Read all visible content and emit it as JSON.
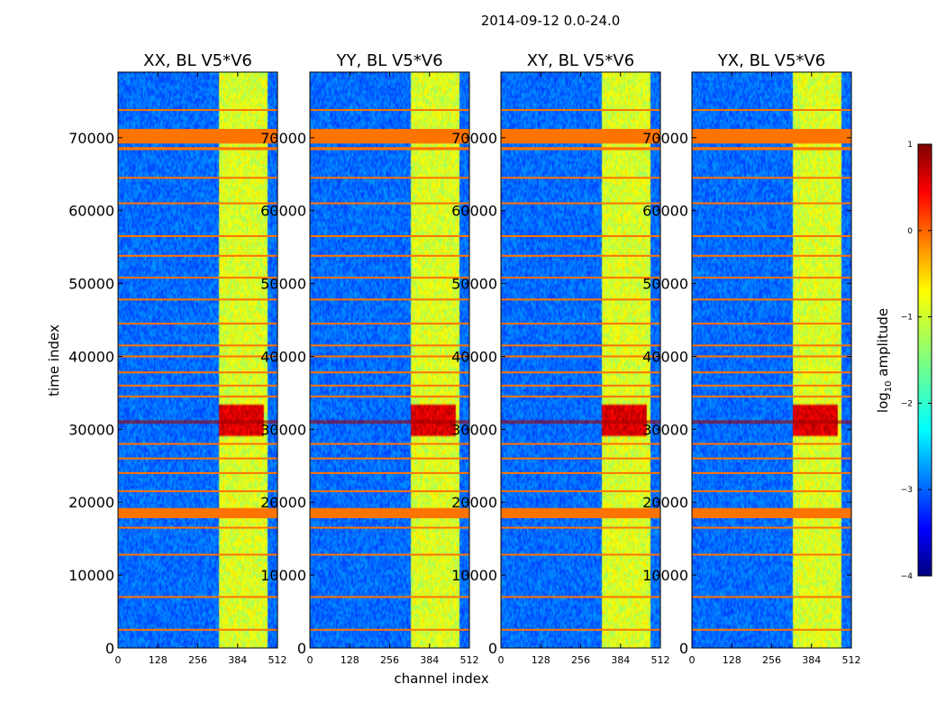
{
  "chart_data": {
    "type": "heatmap",
    "suptitle": "2014-09-12 0.0-24.0",
    "xlabel": "channel index",
    "ylabel": "time index",
    "xlim": [
      0,
      512
    ],
    "ylim": [
      0,
      79000
    ],
    "xticks": [
      "0",
      "128",
      "256",
      "384",
      "512"
    ],
    "xtick_values": [
      0,
      128,
      256,
      384,
      512
    ],
    "yticks": [
      "0",
      "10000",
      "20000",
      "30000",
      "40000",
      "50000",
      "60000",
      "70000"
    ],
    "ytick_values": [
      0,
      10000,
      20000,
      30000,
      40000,
      50000,
      60000,
      70000
    ],
    "panels": [
      {
        "title": "XX, BL V5*V6",
        "pol": "XX",
        "hot_row": 31000
      },
      {
        "title": "YY, BL V5*V6",
        "pol": "YY",
        "hot_row": 31000
      },
      {
        "title": "XY, BL V5*V6",
        "pol": "XY",
        "hot_row": 31000
      },
      {
        "title": "YX, BL V5*V6",
        "pol": "YX",
        "hot_row": 31000
      }
    ],
    "colorbar": {
      "label": "log10 amplitude",
      "label_main": "log",
      "label_sub": "10",
      "label_rest": " amplitude",
      "range": [
        -4,
        1
      ],
      "ticks": [
        "1",
        "0",
        "−1",
        "−2",
        "−3",
        "−4"
      ],
      "tick_values": [
        1,
        0,
        -1,
        -2,
        -3,
        -4
      ],
      "colormap": "jet"
    },
    "features": {
      "rfi_band_channels": [
        325,
        480
      ],
      "saturated_rows": [
        [
          69200,
          71200
        ],
        [
          68300,
          68700
        ],
        [
          17800,
          19200
        ]
      ],
      "burst_rows": [
        29000,
        33500
      ],
      "burst_channels": [
        325,
        470
      ],
      "flag_rows": [
        73800,
        64500,
        61000,
        56500,
        53800,
        50800,
        47800,
        44500,
        41500,
        40000,
        37800,
        36000,
        34500,
        28000,
        26000,
        24000,
        21500,
        16500,
        12800,
        7000,
        2500
      ]
    }
  },
  "colors": {
    "background": "#ffffff",
    "axis": "#000000",
    "saturated": "#ff7300",
    "burst": "#a00000"
  }
}
